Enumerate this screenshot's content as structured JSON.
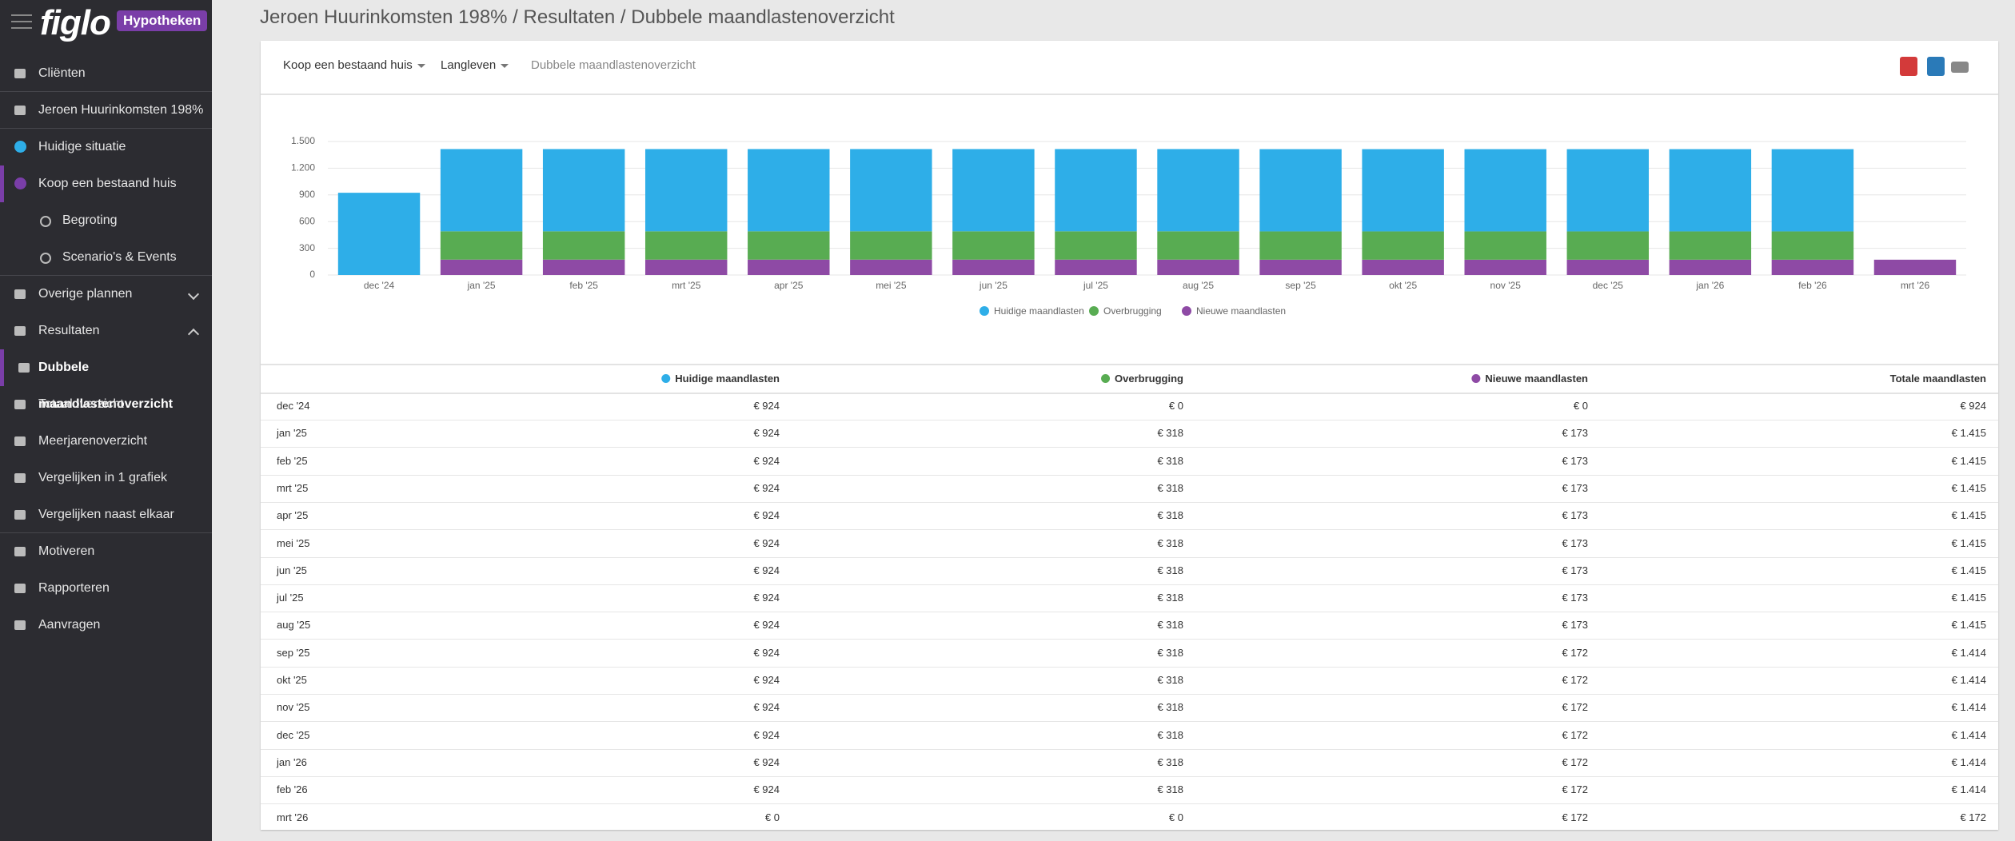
{
  "sidebar": {
    "logo": "figlo",
    "badge": "Hypotheken",
    "items": [
      "Cliënten",
      "Jeroen Huurinkomsten 198%",
      "Huidige situatie",
      "Koop een bestaand huis",
      "Begroting",
      "Scenario's & Events",
      "Overige plannen",
      "Resultaten",
      "Dubbele maandlastenoverzicht",
      "Totaaloverzicht",
      "Meerjarenoverzicht",
      "Vergelijken in 1 grafiek",
      "Vergelijken naast elkaar",
      "Motiveren",
      "Rapporteren",
      "Aanvragen"
    ]
  },
  "header": {
    "title": "Jeroen Huurinkomsten 198% / Resultaten / Dubbele maandlastenoverzicht"
  },
  "tabs": [
    "Koop een bestaand huis",
    "Langleven",
    "Dubbele maandlastenoverzicht"
  ],
  "chart_data": {
    "type": "bar",
    "stacked": true,
    "categories": [
      "dec '24",
      "jan '25",
      "feb '25",
      "mrt '25",
      "apr '25",
      "mei '25",
      "jun '25",
      "jul '25",
      "aug '25",
      "sep '25",
      "okt '25",
      "nov '25",
      "dec '25",
      "jan '26",
      "feb '26",
      "mrt '26"
    ],
    "series": [
      {
        "name": "Huidige maandlasten",
        "color": "#2eaee8",
        "values": [
          924,
          924,
          924,
          924,
          924,
          924,
          924,
          924,
          924,
          924,
          924,
          924,
          924,
          924,
          924,
          0
        ]
      },
      {
        "name": "Overbrugging",
        "color": "#58ac52",
        "values": [
          0,
          318,
          318,
          318,
          318,
          318,
          318,
          318,
          318,
          318,
          318,
          318,
          318,
          318,
          318,
          0
        ]
      },
      {
        "name": "Nieuwe maandlasten",
        "color": "#8e4aa5",
        "values": [
          0,
          173,
          173,
          173,
          173,
          173,
          173,
          173,
          173,
          172,
          172,
          172,
          172,
          172,
          172,
          172
        ]
      }
    ],
    "ylim": [
      0,
      1500
    ],
    "yticks": [
      0,
      300,
      600,
      900,
      {
        "value": 1200,
        "label": "1.200"
      },
      {
        "value": 1500,
        "label": "1.500"
      }
    ],
    "grid": true,
    "legend": "bottom"
  },
  "table": {
    "header": [
      "Huidige maandlasten",
      "Overbrugging",
      "Nieuwe maandlasten",
      "Totale maandlasten"
    ],
    "rows": [
      [
        "dec '24",
        "€ 924",
        "€ 0",
        "€ 0",
        "€ 924"
      ],
      [
        "jan '25",
        "€ 924",
        "€ 318",
        "€ 173",
        "€ 1.415"
      ],
      [
        "feb '25",
        "€ 924",
        "€ 318",
        "€ 173",
        "€ 1.415"
      ],
      [
        "mrt '25",
        "€ 924",
        "€ 318",
        "€ 173",
        "€ 1.415"
      ],
      [
        "apr '25",
        "€ 924",
        "€ 318",
        "€ 173",
        "€ 1.415"
      ],
      [
        "mei '25",
        "€ 924",
        "€ 318",
        "€ 173",
        "€ 1.415"
      ],
      [
        "jun '25",
        "€ 924",
        "€ 318",
        "€ 173",
        "€ 1.415"
      ],
      [
        "jul '25",
        "€ 924",
        "€ 318",
        "€ 173",
        "€ 1.415"
      ],
      [
        "aug '25",
        "€ 924",
        "€ 318",
        "€ 173",
        "€ 1.415"
      ],
      [
        "sep '25",
        "€ 924",
        "€ 318",
        "€ 172",
        "€ 1.414"
      ],
      [
        "okt '25",
        "€ 924",
        "€ 318",
        "€ 172",
        "€ 1.414"
      ],
      [
        "nov '25",
        "€ 924",
        "€ 318",
        "€ 172",
        "€ 1.414"
      ],
      [
        "dec '25",
        "€ 924",
        "€ 318",
        "€ 172",
        "€ 1.414"
      ],
      [
        "jan '26",
        "€ 924",
        "€ 318",
        "€ 172",
        "€ 1.414"
      ],
      [
        "feb '26",
        "€ 924",
        "€ 318",
        "€ 172",
        "€ 1.414"
      ],
      [
        "mrt '26",
        "€ 0",
        "€ 0",
        "€ 172",
        "€ 172"
      ]
    ]
  }
}
